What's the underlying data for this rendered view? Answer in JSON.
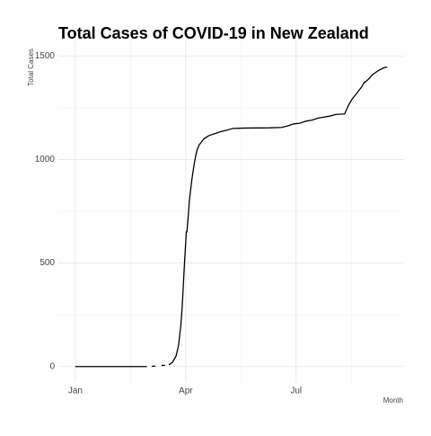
{
  "chart_data": {
    "type": "line",
    "title": "Total Cases of COVID-19 in New Zealand",
    "x_label": "Month",
    "y_label": "Total Cases",
    "x": [
      0,
      59,
      60,
      63,
      66,
      67,
      71,
      74,
      75,
      77,
      80,
      83,
      85,
      87,
      88,
      90,
      91,
      91.5,
      92,
      93,
      94,
      96,
      98,
      100,
      102,
      104,
      106,
      110,
      115,
      120,
      125,
      130,
      140,
      160,
      170,
      175,
      180,
      185,
      190,
      195,
      200,
      205,
      210,
      215,
      222,
      225,
      228,
      232,
      236,
      238,
      242,
      245,
      250,
      254,
      257
    ],
    "series": [
      {
        "name": "Total Cases",
        "color": "#000000",
        "values": [
          0,
          0,
          null,
          1,
          2,
          null,
          5,
          6,
          null,
          8,
          20,
          50,
          100,
          200,
          280,
          500,
          600,
          650,
          650,
          720,
          800,
          900,
          980,
          1040,
          1070,
          1085,
          1100,
          1115,
          1125,
          1135,
          1142,
          1150,
          1152,
          1153,
          1155,
          1162,
          1172,
          1175,
          1185,
          1190,
          1200,
          1205,
          1210,
          1218,
          1220,
          1260,
          1290,
          1320,
          1350,
          1370,
          1390,
          1410,
          1430,
          1442,
          1447
        ]
      }
    ],
    "xlim": [
      -14,
      271
    ],
    "xticks": [
      {
        "value": 0,
        "label": "Jan"
      },
      {
        "value": 91,
        "label": "Apr"
      },
      {
        "value": 182,
        "label": "Jul"
      }
    ],
    "ylim": [
      -75,
      1575
    ],
    "yticks": [
      0,
      500,
      1000,
      1500
    ],
    "grid": true,
    "minor_grid": true
  }
}
